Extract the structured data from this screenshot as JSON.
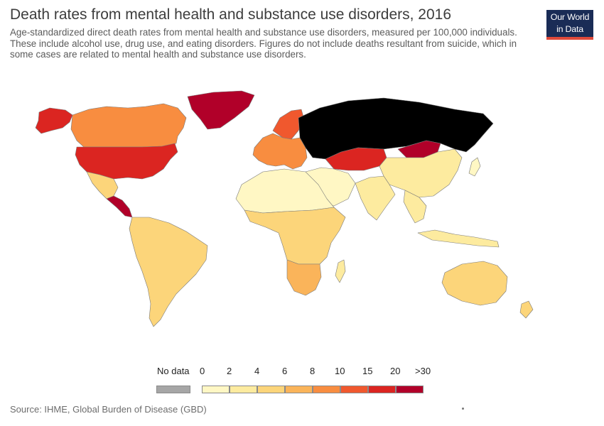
{
  "header": {
    "title": "Death rates from mental health and substance use disorders, 2016",
    "subtitle": "Age-standardized direct death rates from mental health and substance use disorders, measured per 100,000 individuals. These include alcohol use, drug use, and eating disorders. Figures do not include deaths resultant from suicide, which in some cases are related to mental health and substance use disorders."
  },
  "logo": {
    "line1": "Our World",
    "line2": "in Data",
    "bg": "#1a2c56",
    "accent": "#e04a3a"
  },
  "map": {
    "regions": [
      {
        "name": "russia",
        "bin": 9
      },
      {
        "name": "greenland",
        "bin": 8
      },
      {
        "name": "usa",
        "bin": 7
      },
      {
        "name": "alaska",
        "bin": 7
      },
      {
        "name": "canada",
        "bin": 5
      },
      {
        "name": "mexico",
        "bin": 3
      },
      {
        "name": "central-america",
        "bin": 8
      },
      {
        "name": "south-america",
        "bin": 3
      },
      {
        "name": "europe",
        "bin": 5
      },
      {
        "name": "scandinavia",
        "bin": 6
      },
      {
        "name": "kazakhstan",
        "bin": 7
      },
      {
        "name": "mongolia",
        "bin": 8
      },
      {
        "name": "china",
        "bin": 2
      },
      {
        "name": "india",
        "bin": 2
      },
      {
        "name": "middle-east",
        "bin": 1
      },
      {
        "name": "north-africa",
        "bin": 1
      },
      {
        "name": "sub-saharan-africa",
        "bin": 3
      },
      {
        "name": "southern-africa",
        "bin": 4
      },
      {
        "name": "southeast-asia",
        "bin": 2
      },
      {
        "name": "australia",
        "bin": 3
      },
      {
        "name": "new-zealand",
        "bin": 3
      },
      {
        "name": "japan",
        "bin": 1
      },
      {
        "name": "madagascar",
        "bin": 2
      },
      {
        "name": "indonesia",
        "bin": 2
      }
    ]
  },
  "legend": {
    "no_data_label": "No data",
    "no_data_color": "#a6a6a6",
    "labels": [
      "0",
      "2",
      "4",
      "6",
      "8",
      "10",
      "15",
      "20",
      ">30"
    ],
    "colors": [
      "#fff7c4",
      "#fdeb9f",
      "#fcd57a",
      "#fab45a",
      "#f88d40",
      "#f0582e",
      "#db2521",
      "#b10029"
    ]
  },
  "footer": {
    "source": "Source: IHME, Global Burden of Disease (GBD)"
  }
}
